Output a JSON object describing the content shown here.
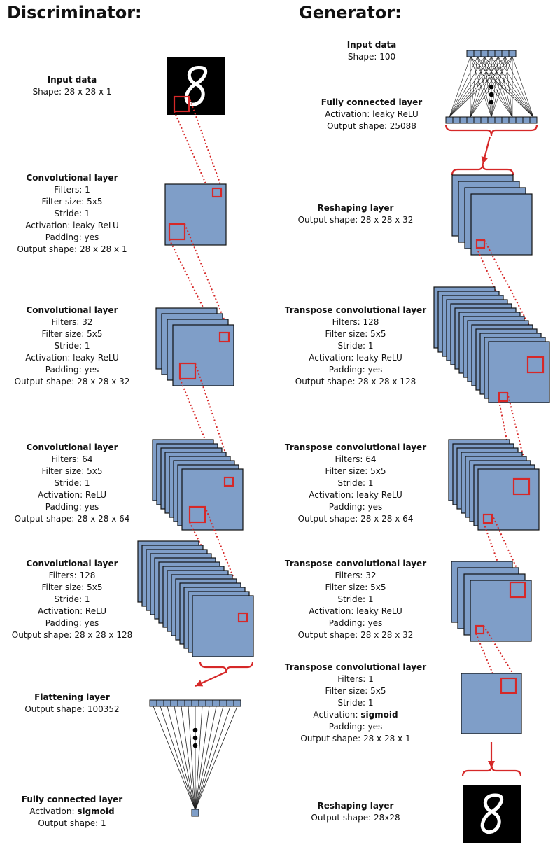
{
  "discriminator": {
    "heading": "Discriminator:",
    "layers": [
      {
        "title": "Input data",
        "lines": [
          {
            "text": "Shape: 28 x 28 x 1"
          }
        ]
      },
      {
        "title": "Convolutional layer",
        "lines": [
          {
            "text": "Filters: 1"
          },
          {
            "text": "Filter size: 5x5"
          },
          {
            "text": "Stride: 1"
          },
          {
            "text": "Activation: leaky ReLU"
          },
          {
            "text": "Padding: yes"
          },
          {
            "text": "Output shape: 28 x 28 x 1"
          }
        ]
      },
      {
        "title": "Convolutional layer",
        "lines": [
          {
            "text": "Filters: 32"
          },
          {
            "text": "Filter size: 5x5"
          },
          {
            "text": "Stride: 1"
          },
          {
            "text": "Activation: leaky ReLU"
          },
          {
            "text": "Padding: yes"
          },
          {
            "text": "Output shape: 28 x 28 x 32"
          }
        ]
      },
      {
        "title": "Convolutional layer",
        "lines": [
          {
            "text": "Filters: 64"
          },
          {
            "text": "Filter size: 5x5"
          },
          {
            "text": "Stride: 1"
          },
          {
            "text": "Activation: ReLU"
          },
          {
            "text": "Padding: yes"
          },
          {
            "text": "Output shape: 28 x 28 x 64"
          }
        ]
      },
      {
        "title": "Convolutional layer",
        "lines": [
          {
            "text": "Filters: 128"
          },
          {
            "text": "Filter size: 5x5"
          },
          {
            "text": "Stride: 1"
          },
          {
            "text": "Activation: ReLU"
          },
          {
            "text": "Padding: yes"
          },
          {
            "text": "Output shape: 28 x 28 x 128"
          }
        ]
      },
      {
        "title": "Flattening layer",
        "lines": [
          {
            "text": "Output shape: 100352"
          }
        ]
      },
      {
        "title": "Fully connected layer",
        "lines": [
          {
            "text": "Activation: ",
            "bold": "sigmoid"
          },
          {
            "text": "Output shape: 1"
          }
        ]
      }
    ]
  },
  "generator": {
    "heading": "Generator:",
    "layers": [
      {
        "title": "Input data",
        "lines": [
          {
            "text": "Shape: 100"
          }
        ]
      },
      {
        "title": "Fully connected layer",
        "lines": [
          {
            "text": "Activation: leaky ReLU"
          },
          {
            "text": "Output shape: 25088"
          }
        ]
      },
      {
        "title": "Reshaping layer",
        "lines": [
          {
            "text": "Output shape: 28 x 28 x 32"
          }
        ]
      },
      {
        "title": "Transpose convolutional layer",
        "lines": [
          {
            "text": "Filters: 128"
          },
          {
            "text": "Filter size: 5x5"
          },
          {
            "text": "Stride: 1"
          },
          {
            "text": "Activation: leaky ReLU"
          },
          {
            "text": "Padding: yes"
          },
          {
            "text": "Output shape: 28 x 28 x 128"
          }
        ]
      },
      {
        "title": "Transpose convolutional layer",
        "lines": [
          {
            "text": "Filters: 64"
          },
          {
            "text": "Filter size: 5x5"
          },
          {
            "text": "Stride: 1"
          },
          {
            "text": "Activation: leaky ReLU"
          },
          {
            "text": "Padding: yes"
          },
          {
            "text": "Output shape: 28 x 28 x 64"
          }
        ]
      },
      {
        "title": "Transpose convolutional layer",
        "lines": [
          {
            "text": "Filters: 32"
          },
          {
            "text": "Filter size: 5x5"
          },
          {
            "text": "Stride: 1"
          },
          {
            "text": "Activation: leaky ReLU"
          },
          {
            "text": "Padding: yes"
          },
          {
            "text": "Output shape: 28 x 28 x 32"
          }
        ]
      },
      {
        "title": "Transpose convolutional layer",
        "lines": [
          {
            "text": "Filters: 1"
          },
          {
            "text": "Filter size: 5x5"
          },
          {
            "text": "Stride: 1"
          },
          {
            "text": "Activation: ",
            "bold": "sigmoid"
          },
          {
            "text": "Padding: yes"
          },
          {
            "text": "Output shape: 28 x 28 x 1"
          }
        ]
      },
      {
        "title": "Reshaping layer",
        "lines": [
          {
            "text": "Output shape: 28x28"
          }
        ]
      }
    ]
  },
  "colors": {
    "feature_map_fill": "#7f9ec8",
    "feature_map_stroke": "#111111",
    "receptive_field": "#d62828",
    "digit_background": "#000000",
    "digit_stroke": "#ffffff"
  },
  "icons": [
    "digit-eight-image",
    "ellipsis-dots-icon",
    "down-arrow-icon",
    "curly-brace-icon"
  ]
}
